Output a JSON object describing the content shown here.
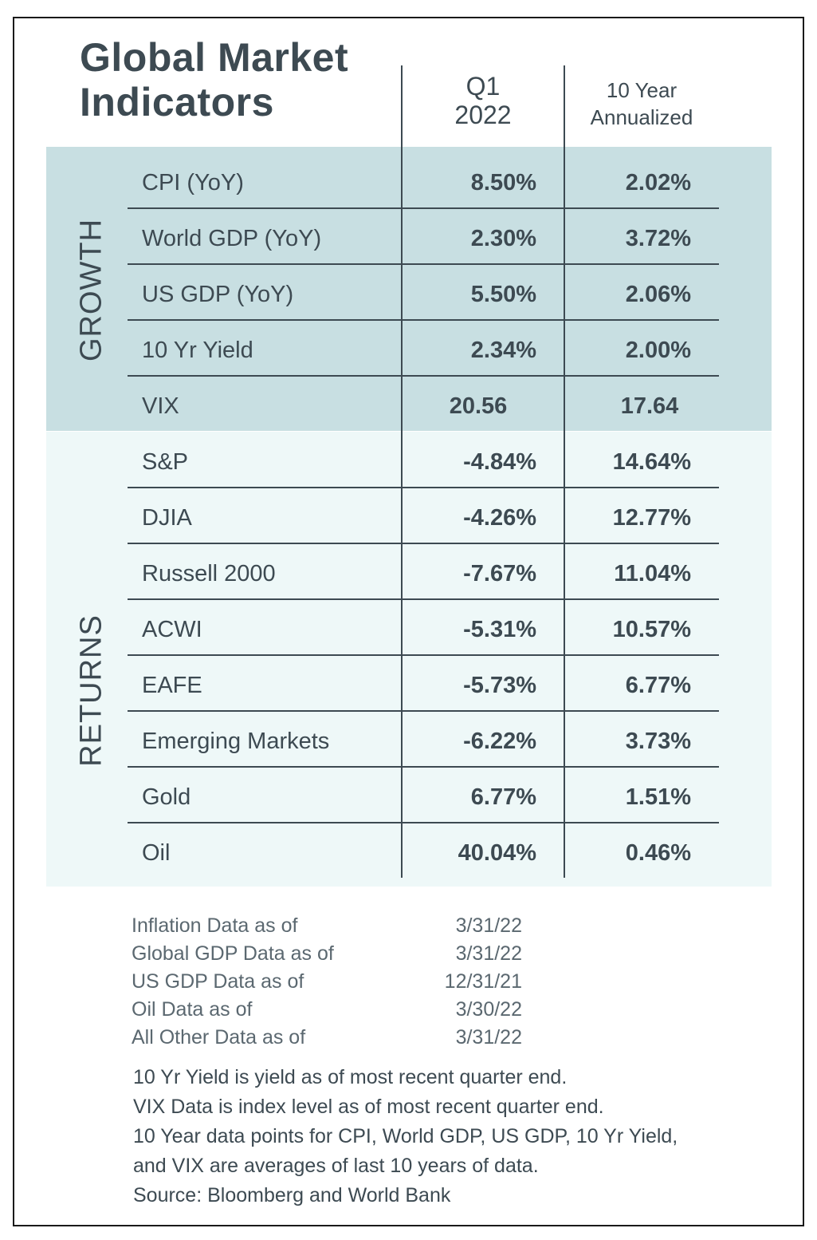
{
  "title_line1": "Global Market",
  "title_line2": "Indicators",
  "col_q1_line1": "Q1",
  "col_q1_line2": "2022",
  "col_10y_line1": "10 Year",
  "col_10y_line2": "Annualized",
  "section_growth": "GROWTH",
  "section_returns": "RETURNS",
  "growth_rows": [
    {
      "name": "CPI (YoY)",
      "q1": "8.50%",
      "ten": "2.02%"
    },
    {
      "name": "World GDP (YoY)",
      "q1": "2.30%",
      "ten": "3.72%"
    },
    {
      "name": "US GDP (YoY)",
      "q1": "5.50%",
      "ten": "2.06%"
    },
    {
      "name": "10 Yr Yield",
      "q1": "2.34%",
      "ten": "2.00%"
    },
    {
      "name": "VIX",
      "q1": "20.56",
      "ten": "17.64"
    }
  ],
  "returns_rows": [
    {
      "name": "S&P",
      "q1": "-4.84%",
      "ten": "14.64%"
    },
    {
      "name": "DJIA",
      "q1": "-4.26%",
      "ten": "12.77%"
    },
    {
      "name": "Russell 2000",
      "q1": "-7.67%",
      "ten": "11.04%"
    },
    {
      "name": "ACWI",
      "q1": "-5.31%",
      "ten": "10.57%"
    },
    {
      "name": "EAFE",
      "q1": "-5.73%",
      "ten": "6.77%"
    },
    {
      "name": "Emerging Markets",
      "q1": "-6.22%",
      "ten": "3.73%"
    },
    {
      "name": "Gold",
      "q1": "6.77%",
      "ten": "1.51%"
    },
    {
      "name": "Oil",
      "q1": "40.04%",
      "ten": "0.46%"
    }
  ],
  "as_of": [
    {
      "label": "Inflation Data as of",
      "date": "3/31/22"
    },
    {
      "label": "Global GDP Data as of",
      "date": "3/31/22"
    },
    {
      "label": "US GDP Data as of",
      "date": "12/31/21"
    },
    {
      "label": "Oil Data as of",
      "date": "3/30/22"
    },
    {
      "label": "All Other Data as of",
      "date": "3/31/22"
    }
  ],
  "notes": [
    "10 Yr Yield is yield as of most recent quarter end.",
    "VIX Data is index level as of most recent quarter end.",
    "10 Year data points for CPI, World GDP, US GDP, 10 Yr Yield,",
    "and VIX are averages of last 10 years of data.",
    "Source: Bloomberg and World Bank"
  ]
}
